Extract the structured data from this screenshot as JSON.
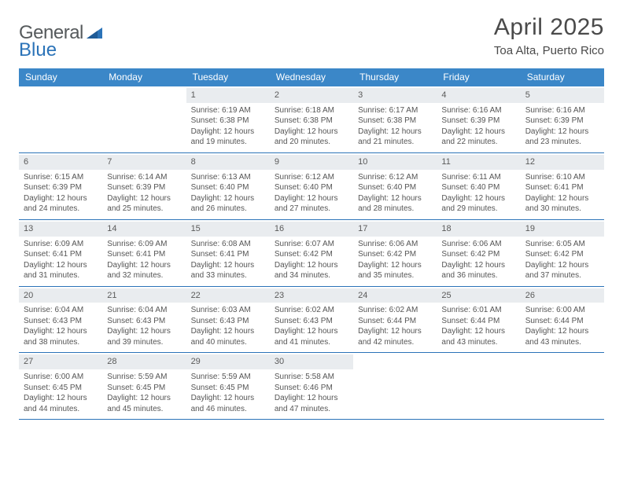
{
  "logo": {
    "text1": "General",
    "text2": "Blue"
  },
  "title": "April 2025",
  "subtitle": "Toa Alta, Puerto Rico",
  "colors": {
    "header_bg": "#3b87c8",
    "header_text": "#ffffff",
    "daynum_bg": "#e9ecef",
    "row_divider": "#2b73b8",
    "logo_gray": "#565a5c",
    "logo_blue": "#2b73b8",
    "body_text": "#555555",
    "title_text": "#4a4a4a",
    "page_bg": "#ffffff"
  },
  "day_headers": [
    "Sunday",
    "Monday",
    "Tuesday",
    "Wednesday",
    "Thursday",
    "Friday",
    "Saturday"
  ],
  "weeks": [
    [
      null,
      null,
      {
        "n": "1",
        "sr": "6:19 AM",
        "ss": "6:38 PM",
        "dl": "12 hours and 19 minutes."
      },
      {
        "n": "2",
        "sr": "6:18 AM",
        "ss": "6:38 PM",
        "dl": "12 hours and 20 minutes."
      },
      {
        "n": "3",
        "sr": "6:17 AM",
        "ss": "6:38 PM",
        "dl": "12 hours and 21 minutes."
      },
      {
        "n": "4",
        "sr": "6:16 AM",
        "ss": "6:39 PM",
        "dl": "12 hours and 22 minutes."
      },
      {
        "n": "5",
        "sr": "6:16 AM",
        "ss": "6:39 PM",
        "dl": "12 hours and 23 minutes."
      }
    ],
    [
      {
        "n": "6",
        "sr": "6:15 AM",
        "ss": "6:39 PM",
        "dl": "12 hours and 24 minutes."
      },
      {
        "n": "7",
        "sr": "6:14 AM",
        "ss": "6:39 PM",
        "dl": "12 hours and 25 minutes."
      },
      {
        "n": "8",
        "sr": "6:13 AM",
        "ss": "6:40 PM",
        "dl": "12 hours and 26 minutes."
      },
      {
        "n": "9",
        "sr": "6:12 AM",
        "ss": "6:40 PM",
        "dl": "12 hours and 27 minutes."
      },
      {
        "n": "10",
        "sr": "6:12 AM",
        "ss": "6:40 PM",
        "dl": "12 hours and 28 minutes."
      },
      {
        "n": "11",
        "sr": "6:11 AM",
        "ss": "6:40 PM",
        "dl": "12 hours and 29 minutes."
      },
      {
        "n": "12",
        "sr": "6:10 AM",
        "ss": "6:41 PM",
        "dl": "12 hours and 30 minutes."
      }
    ],
    [
      {
        "n": "13",
        "sr": "6:09 AM",
        "ss": "6:41 PM",
        "dl": "12 hours and 31 minutes."
      },
      {
        "n": "14",
        "sr": "6:09 AM",
        "ss": "6:41 PM",
        "dl": "12 hours and 32 minutes."
      },
      {
        "n": "15",
        "sr": "6:08 AM",
        "ss": "6:41 PM",
        "dl": "12 hours and 33 minutes."
      },
      {
        "n": "16",
        "sr": "6:07 AM",
        "ss": "6:42 PM",
        "dl": "12 hours and 34 minutes."
      },
      {
        "n": "17",
        "sr": "6:06 AM",
        "ss": "6:42 PM",
        "dl": "12 hours and 35 minutes."
      },
      {
        "n": "18",
        "sr": "6:06 AM",
        "ss": "6:42 PM",
        "dl": "12 hours and 36 minutes."
      },
      {
        "n": "19",
        "sr": "6:05 AM",
        "ss": "6:42 PM",
        "dl": "12 hours and 37 minutes."
      }
    ],
    [
      {
        "n": "20",
        "sr": "6:04 AM",
        "ss": "6:43 PM",
        "dl": "12 hours and 38 minutes."
      },
      {
        "n": "21",
        "sr": "6:04 AM",
        "ss": "6:43 PM",
        "dl": "12 hours and 39 minutes."
      },
      {
        "n": "22",
        "sr": "6:03 AM",
        "ss": "6:43 PM",
        "dl": "12 hours and 40 minutes."
      },
      {
        "n": "23",
        "sr": "6:02 AM",
        "ss": "6:43 PM",
        "dl": "12 hours and 41 minutes."
      },
      {
        "n": "24",
        "sr": "6:02 AM",
        "ss": "6:44 PM",
        "dl": "12 hours and 42 minutes."
      },
      {
        "n": "25",
        "sr": "6:01 AM",
        "ss": "6:44 PM",
        "dl": "12 hours and 43 minutes."
      },
      {
        "n": "26",
        "sr": "6:00 AM",
        "ss": "6:44 PM",
        "dl": "12 hours and 43 minutes."
      }
    ],
    [
      {
        "n": "27",
        "sr": "6:00 AM",
        "ss": "6:45 PM",
        "dl": "12 hours and 44 minutes."
      },
      {
        "n": "28",
        "sr": "5:59 AM",
        "ss": "6:45 PM",
        "dl": "12 hours and 45 minutes."
      },
      {
        "n": "29",
        "sr": "5:59 AM",
        "ss": "6:45 PM",
        "dl": "12 hours and 46 minutes."
      },
      {
        "n": "30",
        "sr": "5:58 AM",
        "ss": "6:46 PM",
        "dl": "12 hours and 47 minutes."
      },
      null,
      null,
      null
    ]
  ],
  "labels": {
    "sunrise": "Sunrise:",
    "sunset": "Sunset:",
    "daylight": "Daylight:"
  },
  "typography": {
    "title_fontsize": 30,
    "subtitle_fontsize": 15,
    "header_fontsize": 12,
    "cell_fontsize": 10,
    "daynum_fontsize": 11
  }
}
